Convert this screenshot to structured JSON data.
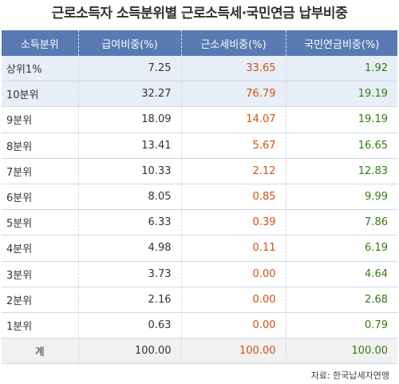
{
  "title": "근로소득자 소득분위별 근로소득세·국민연금 납부비중",
  "source": "자료: 한국납세자연맹",
  "colors": {
    "header_bg": "#5879b2",
    "highlight_row_bg": "#e8eef8",
    "tax_text": "#d4500e",
    "pension_text": "#2f7d10"
  },
  "chart_data": {
    "type": "table",
    "columns": [
      "소득분위",
      "급여비중(%)",
      "근소세비중(%)",
      "국민연금비중(%)"
    ],
    "rows": [
      {
        "label": "상위1%",
        "wage": "7.25",
        "tax": "33.65",
        "pension": "1.92",
        "highlight": true
      },
      {
        "label": "10분위",
        "wage": "32.27",
        "tax": "76.79",
        "pension": "19.19",
        "highlight": true
      },
      {
        "label": "9분위",
        "wage": "18.09",
        "tax": "14.07",
        "pension": "19.19"
      },
      {
        "label": "8분위",
        "wage": "13.41",
        "tax": "5.67",
        "pension": "16.65"
      },
      {
        "label": "7분위",
        "wage": "10.33",
        "tax": "2.12",
        "pension": "12.83"
      },
      {
        "label": "6분위",
        "wage": "8.05",
        "tax": "0.85",
        "pension": "9.99"
      },
      {
        "label": "5분위",
        "wage": "6.33",
        "tax": "0.39",
        "pension": "7.86"
      },
      {
        "label": "4분위",
        "wage": "4.98",
        "tax": "0.11",
        "pension": "6.19"
      },
      {
        "label": "3분위",
        "wage": "3.73",
        "tax": "0.00",
        "pension": "4.64"
      },
      {
        "label": "2분위",
        "wage": "2.16",
        "tax": "0.00",
        "pension": "2.68"
      },
      {
        "label": "1분위",
        "wage": "0.63",
        "tax": "0.00",
        "pension": "0.79"
      },
      {
        "label": "계",
        "wage": "100.00",
        "tax": "100.00",
        "pension": "100.00",
        "total": true
      }
    ]
  }
}
